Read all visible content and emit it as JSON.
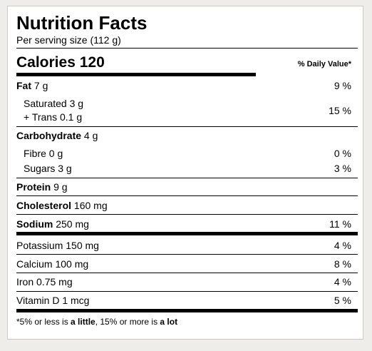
{
  "header": {
    "title": "Nutrition Facts",
    "serving": "Per serving size (112 g)"
  },
  "calories": {
    "label": "Calories",
    "value": 120
  },
  "daily_value_header": "% Daily Value*",
  "rows": [
    {
      "name": "Fat",
      "amount": "7 g",
      "dv": "9 %"
    },
    {
      "lines": [
        "Saturated 3 g",
        "+ Trans 0.1 g"
      ],
      "dv": "15 %"
    },
    {
      "name": "Carbohydrate",
      "amount": "4 g"
    },
    {
      "text": "Fibre 0 g",
      "dv": "0 %"
    },
    {
      "text": "Sugars 3 g",
      "dv": "3 %"
    },
    {
      "name": "Protein",
      "amount": "9 g"
    },
    {
      "name": "Cholesterol",
      "amount": "160 mg"
    },
    {
      "name": "Sodium",
      "amount": "250 mg",
      "dv": "11 %"
    },
    {
      "text": "Potassium 150 mg",
      "dv": "4 %"
    },
    {
      "text": "Calcium 100 mg",
      "dv": "8 %"
    },
    {
      "text": "Iron 0.75 mg",
      "dv": "4 %"
    },
    {
      "text": "Vitamin D 1 mcg",
      "dv": "5 %"
    }
  ],
  "footnote": {
    "start": "*5% or less is ",
    "little": "a little",
    "middle": ", 15% or more is ",
    "lot": "a lot"
  }
}
